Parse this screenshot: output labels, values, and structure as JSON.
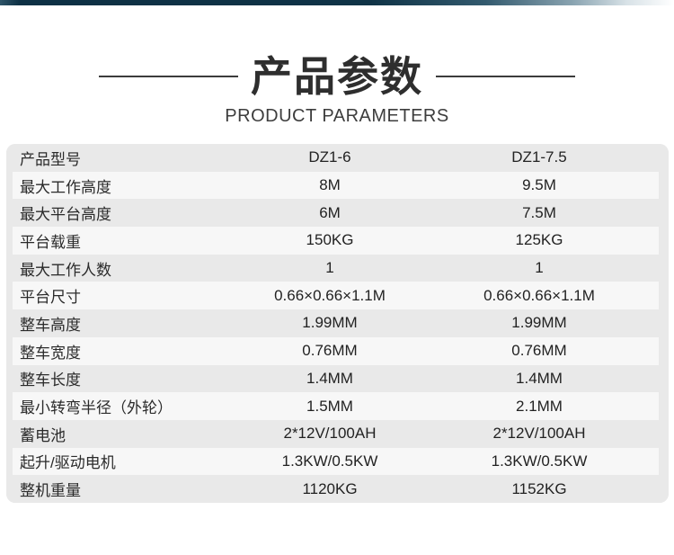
{
  "header": {
    "title": "产品参数",
    "subtitle": "PRODUCT PARAMETERS"
  },
  "table": {
    "rows": [
      {
        "param": "产品型号",
        "dz1_6": "DZ1-6",
        "dz1_7_5": "DZ1-7.5"
      },
      {
        "param": "最大工作高度",
        "dz1_6": "8M",
        "dz1_7_5": "9.5M"
      },
      {
        "param": "最大平台高度",
        "dz1_6": "6M",
        "dz1_7_5": "7.5M"
      },
      {
        "param": "平台载重",
        "dz1_6": "150KG",
        "dz1_7_5": "125KG"
      },
      {
        "param": "最大工作人数",
        "dz1_6": "1",
        "dz1_7_5": "1"
      },
      {
        "param": "平台尺寸",
        "dz1_6": "0.66×0.66×1.1M",
        "dz1_7_5": "0.66×0.66×1.1M"
      },
      {
        "param": "整车高度",
        "dz1_6": "1.99MM",
        "dz1_7_5": "1.99MM"
      },
      {
        "param": "整车宽度",
        "dz1_6": "0.76MM",
        "dz1_7_5": "0.76MM"
      },
      {
        "param": "整车长度",
        "dz1_6": "1.4MM",
        "dz1_7_5": "1.4MM"
      },
      {
        "param": "最小转弯半径（外轮）",
        "dz1_6": "1.5MM",
        "dz1_7_5": "2.1MM"
      },
      {
        "param": "蓄电池",
        "dz1_6": "2*12V/100AH",
        "dz1_7_5": "2*12V/100AH"
      },
      {
        "param": "起升/驱动电机",
        "dz1_6": "1.3KW/0.5KW",
        "dz1_7_5": "1.3KW/0.5KW"
      },
      {
        "param": "整机重量",
        "dz1_6": "1120KG",
        "dz1_7_5": "1152KG"
      }
    ]
  },
  "colors": {
    "accent_bar_navy": "#0d3044",
    "stripe_gray": "#e9e9e9",
    "stripe_light": "#f7f7f7",
    "title_text": "#2e2e2e",
    "divider_line": "#3c3c3c"
  }
}
